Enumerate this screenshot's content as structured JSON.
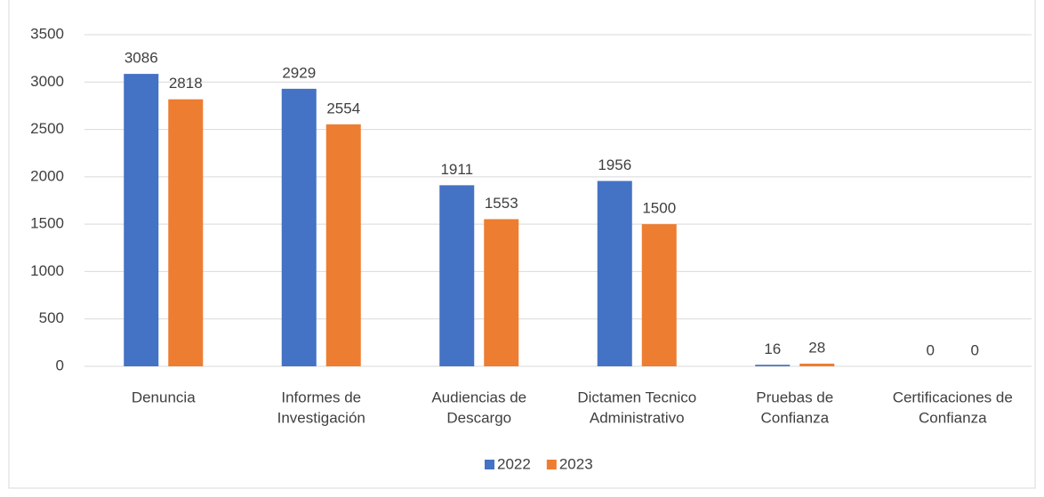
{
  "chart_data": {
    "type": "bar",
    "categories": [
      [
        "Denuncia"
      ],
      [
        "Informes de",
        "Investigación"
      ],
      [
        "Audiencias de",
        "Descargo"
      ],
      [
        "Dictamen Tecnico",
        "Administrativo"
      ],
      [
        "Pruebas de",
        "Confianza"
      ],
      [
        "Certificaciones de",
        "Confianza"
      ]
    ],
    "series": [
      {
        "name": "2022",
        "color": "#4472c4",
        "values": [
          3086,
          2929,
          1911,
          1956,
          16,
          0
        ]
      },
      {
        "name": "2023",
        "color": "#ed7d31",
        "values": [
          2818,
          2554,
          1553,
          1500,
          28,
          0
        ]
      }
    ],
    "ylim": [
      0,
      3500
    ],
    "yticks": [
      0,
      500,
      1000,
      1500,
      2000,
      2500,
      3000,
      3500
    ],
    "grid": true,
    "legend": "bottom"
  }
}
